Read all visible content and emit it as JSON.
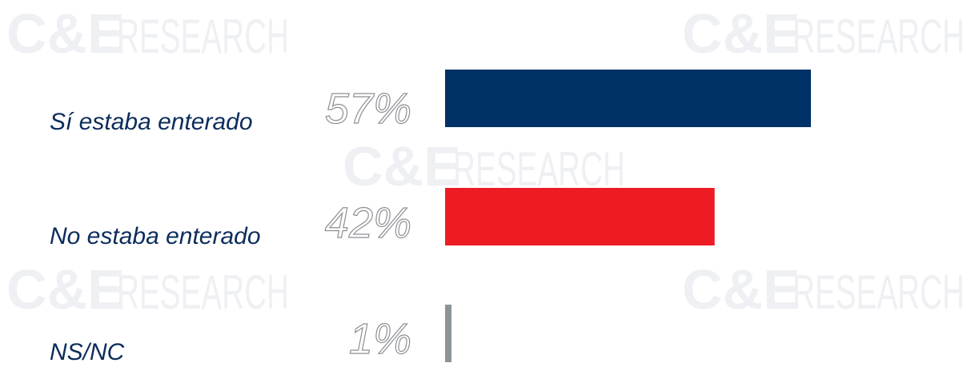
{
  "watermark": {
    "logo": "C&E",
    "word": "RESEARCH"
  },
  "chart_data": {
    "type": "bar",
    "orientation": "horizontal",
    "categories": [
      "Sí estaba enterado",
      "No estaba enterado",
      "NS/NC"
    ],
    "values": [
      57,
      42,
      1
    ],
    "value_labels": [
      "57%",
      "42%",
      "1%"
    ],
    "colors": [
      "#003166",
      "#ed1c24",
      "#8c9496"
    ],
    "unit": "%",
    "title": "",
    "xlabel": "",
    "ylabel": "",
    "xlim": [
      0,
      57
    ],
    "grid": false,
    "legend": "none"
  }
}
